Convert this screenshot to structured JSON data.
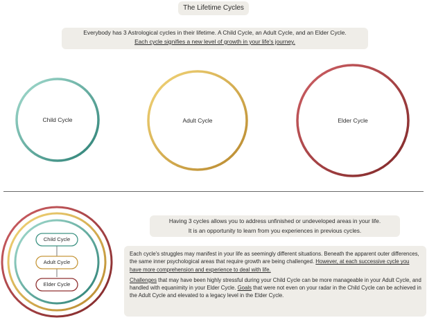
{
  "title": "The Lifetime Cycles",
  "intro": {
    "line1": "Everybody has 3 Astrological cycles in their lifetime. A Child Cycle, an Adult Cycle, and an Elder Cycle.",
    "line2": "Each cycle signifies a new level of growth in your life's journey."
  },
  "cycles": [
    {
      "label": "Child Cycle",
      "color_a": "#8fd3c4",
      "color_b": "#2a7f74"
    },
    {
      "label": "Adult Cycle",
      "color_a": "#f0cd6a",
      "color_b": "#c0923a"
    },
    {
      "label": "Elder Cycle",
      "color_a": "#c4555a",
      "color_b": "#8a2d2d"
    }
  ],
  "middle": {
    "line1": "Having 3 cycles allows you to address unfinished or undeveloped areas in your life.",
    "line2": "It is an opportunity to learn from you experiences in previous cycles."
  },
  "bottom": {
    "p1a": "Each cycle's struggles may manifest in your life as seemingly different situations. Beneath the apparent outer differences, the same inner psychological areas that require growth are being challenged.",
    "p1b": "However, at each successive cycle you have more comprehension and experience to deal with life.",
    "challenges_word": "Challenges",
    "p2a": " that may have been highly stressful during your Child Cycle can be more manageable in your Adult Cycle, and handled with equanimity in your Elder Cycle. ",
    "goals_word": "Goals",
    "p2b": " that were not even on your radar in the Child Cycle can be achieved in the Adult Cycle and elevated to a legacy level in the Elder Cycle."
  }
}
